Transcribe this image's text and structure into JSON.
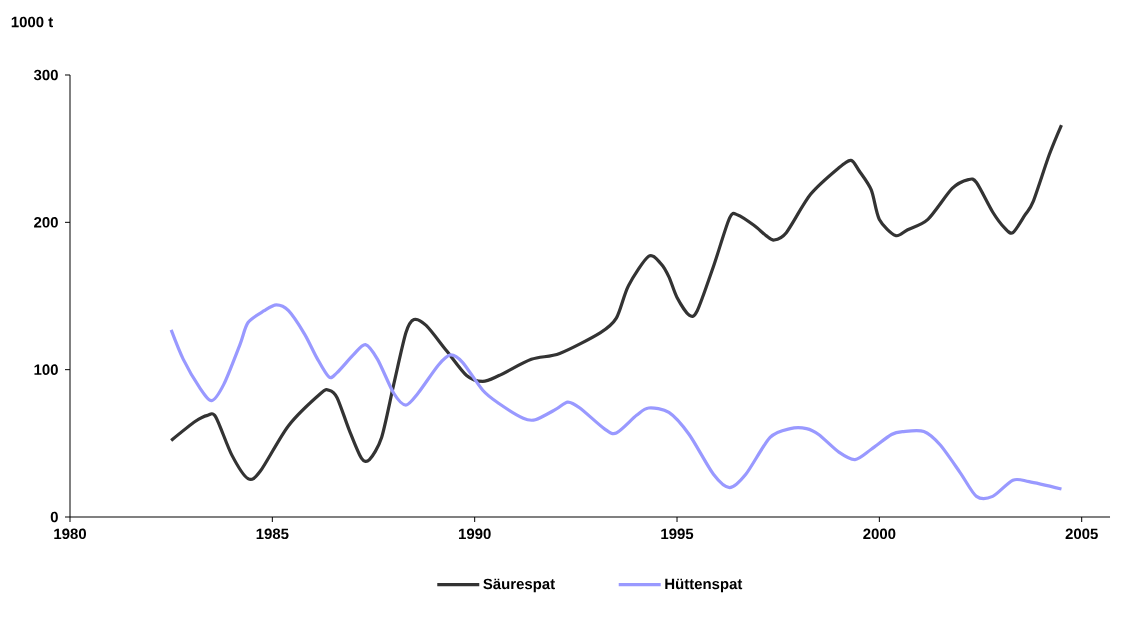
{
  "chart_data": {
    "type": "line",
    "ylabel": "1000 t",
    "xlim": [
      1980,
      2005.7
    ],
    "ylim": [
      0,
      300
    ],
    "xticks": [
      1980,
      1985,
      1990,
      1995,
      2000,
      2005
    ],
    "yticks": [
      0,
      100,
      200,
      300
    ],
    "grid": false,
    "legend": "bottom",
    "marker": "none",
    "line_style": "solid",
    "series": [
      {
        "name": "Säurespat",
        "color": "#333333",
        "x": [
          1982.5,
          1983.1,
          1983.4,
          1983.6,
          1984.0,
          1984.4,
          1984.7,
          1985.4,
          1986.2,
          1986.4,
          1986.6,
          1986.9,
          1987.2,
          1987.4,
          1987.7,
          1988.0,
          1988.3,
          1988.5,
          1988.8,
          1989.3,
          1989.8,
          1990.2,
          1990.6,
          1991.4,
          1992.1,
          1993.1,
          1993.5,
          1993.8,
          1994.3,
          1994.6,
          1994.8,
          1995.0,
          1995.3,
          1995.5,
          1995.9,
          1996.3,
          1996.5,
          1996.9,
          1997.2,
          1997.4,
          1997.7,
          1998.3,
          1999.0,
          1999.3,
          1999.5,
          1999.8,
          2000.0,
          2000.4,
          2000.7,
          2001.2,
          2001.8,
          2002.2,
          2002.4,
          2002.8,
          2003.1,
          2003.3,
          2003.6,
          2003.8,
          2004.2,
          2004.5
        ],
        "values": [
          52,
          65,
          69,
          68,
          42,
          26,
          31,
          62,
          84,
          86,
          81,
          59,
          40,
          39,
          54,
          90,
          125,
          134,
          130,
          113,
          96,
          92,
          96,
          107,
          111,
          125,
          135,
          157,
          177,
          172,
          163,
          149,
          137,
          140,
          170,
          203,
          205,
          198,
          191,
          188,
          193,
          219,
          237,
          242,
          235,
          222,
          202,
          191,
          195,
          202,
          223,
          229,
          227,
          207,
          196,
          193,
          205,
          214,
          246,
          266
        ]
      },
      {
        "name": "Hüttenspat",
        "color": "#9999ff",
        "x": [
          1982.5,
          1982.8,
          1983.2,
          1983.5,
          1983.8,
          1984.2,
          1984.4,
          1984.8,
          1985.1,
          1985.4,
          1985.8,
          1986.1,
          1986.4,
          1986.6,
          1987.0,
          1987.3,
          1987.6,
          1988.0,
          1988.3,
          1988.6,
          1989.1,
          1989.4,
          1989.7,
          1990.2,
          1990.6,
          1991.2,
          1991.5,
          1992.0,
          1992.3,
          1992.6,
          1993.2,
          1993.5,
          1994.0,
          1994.3,
          1994.8,
          1995.3,
          1995.9,
          1996.3,
          1996.7,
          1997.3,
          1997.8,
          1998.2,
          1998.5,
          1999.0,
          1999.4,
          1999.8,
          2000.3,
          2000.6,
          2001.1,
          2001.5,
          2002.0,
          2002.4,
          2002.8,
          2003.3,
          2003.7,
          2004.5
        ],
        "values": [
          127,
          107,
          88,
          79,
          90,
          117,
          132,
          140,
          144,
          140,
          124,
          108,
          95,
          98,
          110,
          117,
          107,
          84,
          76,
          84,
          103,
          110,
          105,
          86,
          77,
          67,
          66,
          73,
          78,
          74,
          60,
          57,
          69,
          74,
          71,
          56,
          29,
          20,
          29,
          54,
          60,
          60,
          56,
          44,
          39,
          46,
          56,
          58,
          58,
          49,
          30,
          14,
          14,
          25,
          24,
          19
        ]
      }
    ]
  }
}
